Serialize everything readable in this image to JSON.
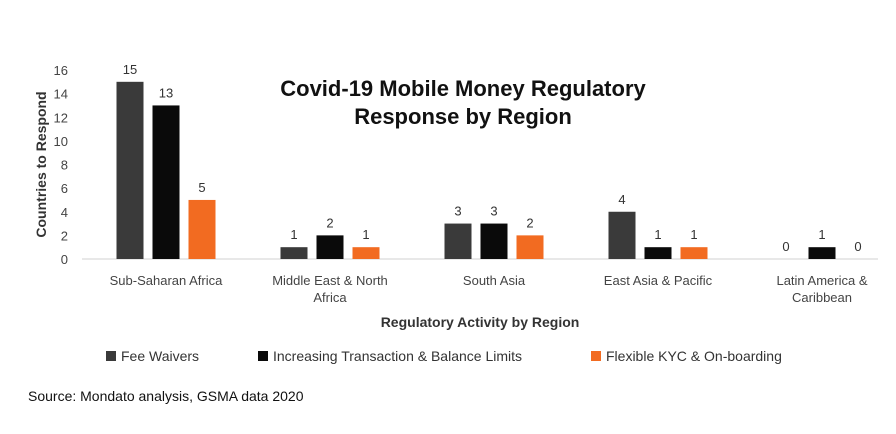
{
  "chart_data": {
    "type": "bar",
    "title": "Covid-19 Mobile Money Regulatory Response by Region",
    "title_lines": [
      "Covid-19 Mobile Money Regulatory",
      "Response by Region"
    ],
    "xlabel": "Regulatory Activity by Region",
    "ylabel": "Countries to Respond",
    "ylim": [
      0,
      16
    ],
    "yticks": [
      0,
      2,
      4,
      6,
      8,
      10,
      12,
      14,
      16
    ],
    "categories": [
      [
        "Sub-Saharan Africa"
      ],
      [
        "Middle East & North",
        "Africa"
      ],
      [
        "South Asia"
      ],
      [
        "East Asia & Pacific"
      ],
      [
        "Latin America &",
        "Caribbean"
      ]
    ],
    "series": [
      {
        "name": "Fee Waivers",
        "color": "#3a3a3a",
        "values": [
          15,
          1,
          3,
          4,
          0
        ]
      },
      {
        "name": "Increasing Transaction & Balance Limits",
        "color": "#0a0a0a",
        "values": [
          13,
          2,
          3,
          1,
          1
        ]
      },
      {
        "name": "Flexible KYC & On-boarding",
        "color": "#f26b21",
        "values": [
          5,
          1,
          2,
          1,
          0
        ]
      }
    ],
    "grid": false,
    "legend_position": "bottom"
  },
  "source": "Source: Mondato analysis, GSMA data 2020"
}
